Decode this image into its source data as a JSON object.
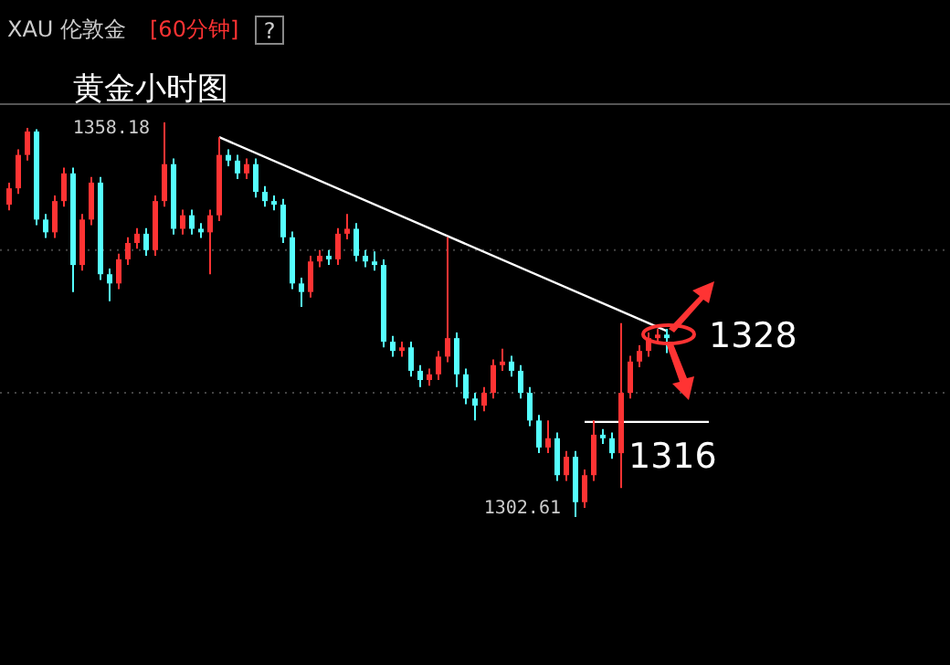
{
  "chart_data": {
    "type": "candlestick",
    "title": "XAU 伦敦金",
    "subtitle": "[60分钟]",
    "annotations": [
      "黄金小时图",
      "1358.18",
      "1302.61",
      "1328",
      "?"
    ],
    "categories": [
      null,
      null,
      null,
      null,
      null,
      null,
      null,
      null,
      null,
      null,
      null,
      null,
      null,
      null,
      null,
      null,
      null,
      null,
      null,
      null,
      null,
      null,
      null,
      null,
      null,
      null,
      null,
      null,
      null,
      null,
      null,
      null,
      null,
      null,
      null,
      null,
      null,
      null,
      null,
      null,
      null,
      null,
      null,
      null,
      null,
      null,
      null,
      null,
      null,
      null,
      null,
      null,
      null,
      null,
      null,
      null,
      null,
      null,
      null,
      null,
      null,
      null,
      null,
      null,
      null,
      null,
      null,
      null,
      null,
      null,
      null,
      null,
      null
    ],
    "ohlc": [
      [
        1346.6,
        1349.7,
        1345.8,
        1348.9
      ],
      [
        1348.9,
        1354.4,
        1348.1,
        1353.6
      ],
      [
        1353.6,
        1357.4,
        1352.8,
        1356.9
      ],
      [
        1356.9,
        1357.2,
        1343.7,
        1344.5
      ],
      [
        1344.5,
        1345.3,
        1341.9,
        1342.7
      ],
      [
        1342.7,
        1347.9,
        1341.9,
        1347.1
      ],
      [
        1347.1,
        1351.8,
        1346.3,
        1351.0
      ],
      [
        1351.0,
        1351.8,
        1334.3,
        1338.1
      ],
      [
        1338.1,
        1345.3,
        1337.3,
        1344.5
      ],
      [
        1344.5,
        1350.5,
        1343.7,
        1349.7
      ],
      [
        1349.7,
        1350.5,
        1336.0,
        1336.8
      ],
      [
        1336.8,
        1337.6,
        1333.0,
        1335.5
      ],
      [
        1335.5,
        1339.7,
        1334.7,
        1338.9
      ],
      [
        1338.9,
        1342.0,
        1338.1,
        1341.2
      ],
      [
        1341.2,
        1343.3,
        1340.4,
        1342.5
      ],
      [
        1342.5,
        1343.3,
        1339.4,
        1340.2
      ],
      [
        1340.2,
        1347.9,
        1339.4,
        1347.1
      ],
      [
        1347.1,
        1358.18,
        1346.3,
        1352.3
      ],
      [
        1352.3,
        1353.1,
        1342.4,
        1343.2
      ],
      [
        1343.2,
        1345.9,
        1342.4,
        1345.1
      ],
      [
        1345.1,
        1345.9,
        1342.4,
        1343.2
      ],
      [
        1343.2,
        1344.0,
        1341.9,
        1342.7
      ],
      [
        1342.7,
        1345.9,
        1336.8,
        1345.1
      ],
      [
        1345.1,
        1356.1,
        1344.3,
        1353.6
      ],
      [
        1353.6,
        1354.4,
        1352.0,
        1352.8
      ],
      [
        1352.8,
        1353.6,
        1350.2,
        1351.0
      ],
      [
        1351.0,
        1353.1,
        1350.2,
        1352.3
      ],
      [
        1352.3,
        1353.1,
        1347.6,
        1348.4
      ],
      [
        1348.4,
        1349.2,
        1346.3,
        1347.1
      ],
      [
        1347.1,
        1347.9,
        1345.8,
        1346.6
      ],
      [
        1346.6,
        1347.4,
        1341.2,
        1342.0
      ],
      [
        1342.0,
        1342.8,
        1334.7,
        1335.5
      ],
      [
        1335.5,
        1336.3,
        1332.2,
        1334.3
      ],
      [
        1334.3,
        1339.4,
        1333.5,
        1338.6
      ],
      [
        1338.6,
        1340.2,
        1337.8,
        1339.4
      ],
      [
        1339.4,
        1340.2,
        1338.1,
        1338.9
      ],
      [
        1338.9,
        1343.3,
        1338.1,
        1342.5
      ],
      [
        1342.5,
        1345.3,
        1341.7,
        1343.2
      ],
      [
        1343.2,
        1344.0,
        1338.6,
        1339.4
      ],
      [
        1339.4,
        1340.2,
        1337.8,
        1338.6
      ],
      [
        1338.6,
        1340.0,
        1337.3,
        1338.1
      ],
      [
        1338.1,
        1338.9,
        1326.5,
        1327.3
      ],
      [
        1327.3,
        1328.1,
        1325.2,
        1326.0
      ],
      [
        1326.0,
        1327.3,
        1325.2,
        1326.5
      ],
      [
        1326.5,
        1327.3,
        1322.4,
        1323.2
      ],
      [
        1323.2,
        1324.0,
        1320.9,
        1321.9
      ],
      [
        1321.9,
        1323.5,
        1321.1,
        1322.7
      ],
      [
        1322.7,
        1326.0,
        1321.9,
        1325.2
      ],
      [
        1325.2,
        1342.0,
        1324.4,
        1327.8
      ],
      [
        1327.8,
        1328.6,
        1320.9,
        1322.7
      ],
      [
        1322.7,
        1323.5,
        1318.5,
        1319.3
      ],
      [
        1319.3,
        1320.1,
        1316.2,
        1318.3
      ],
      [
        1318.3,
        1320.9,
        1317.5,
        1320.1
      ],
      [
        1320.1,
        1324.8,
        1319.3,
        1324.0
      ],
      [
        1324.0,
        1326.3,
        1323.2,
        1324.5
      ],
      [
        1324.5,
        1325.3,
        1322.4,
        1323.2
      ],
      [
        1323.2,
        1324.0,
        1319.3,
        1320.1
      ],
      [
        1320.1,
        1320.9,
        1315.4,
        1316.2
      ],
      [
        1316.2,
        1317.0,
        1311.6,
        1312.4
      ],
      [
        1312.4,
        1316.2,
        1311.6,
        1313.7
      ],
      [
        1313.7,
        1314.5,
        1307.7,
        1308.5
      ],
      [
        1308.5,
        1311.9,
        1307.7,
        1311.1
      ],
      [
        1311.1,
        1311.9,
        1302.61,
        1304.7
      ],
      [
        1304.7,
        1309.3,
        1303.9,
        1308.5
      ],
      [
        1308.5,
        1316.2,
        1307.7,
        1314.2
      ],
      [
        1314.2,
        1315.0,
        1312.9,
        1313.7
      ],
      [
        1313.7,
        1314.5,
        1310.8,
        1311.6
      ],
      [
        1311.6,
        1329.9,
        1306.7,
        1320.1
      ],
      [
        1320.1,
        1325.3,
        1319.3,
        1324.5
      ],
      [
        1324.5,
        1326.8,
        1323.7,
        1326.0
      ],
      [
        1326.0,
        1328.6,
        1325.2,
        1327.8
      ],
      [
        1327.8,
        1329.1,
        1327.0,
        1328.3
      ],
      [
        1328.3,
        1329.1,
        1325.7,
        1327.8
      ]
    ],
    "colors": [
      "#ff3333",
      "#ff3333",
      "#ff3333",
      "#55ffff",
      "#55ffff",
      "#ff3333",
      "#ff3333",
      "#55ffff",
      "#ff3333",
      "#ff3333",
      "#55ffff",
      "#55ffff",
      "#ff3333",
      "#ff3333",
      "#ff3333",
      "#55ffff",
      "#ff3333",
      "#ff3333",
      "#55ffff",
      "#ff3333",
      "#55ffff",
      "#55ffff",
      "#ff3333",
      "#ff3333",
      "#55ffff",
      "#55ffff",
      "#ff3333",
      "#55ffff",
      "#55ffff",
      "#55ffff",
      "#55ffff",
      "#55ffff",
      "#55ffff",
      "#ff3333",
      "#ff3333",
      "#55ffff",
      "#ff3333",
      "#ff3333",
      "#55ffff",
      "#55ffff",
      "#55ffff",
      "#55ffff",
      "#55ffff",
      "#ff3333",
      "#55ffff",
      "#55ffff",
      "#ff3333",
      "#ff3333",
      "#ff3333",
      "#55ffff",
      "#55ffff",
      "#55ffff",
      "#ff3333",
      "#ff3333",
      "#ff3333",
      "#55ffff",
      "#55ffff",
      "#55ffff",
      "#55ffff",
      "#ff3333",
      "#55ffff",
      "#ff3333",
      "#55ffff",
      "#ff3333",
      "#ff3333",
      "#55ffff",
      "#55ffff",
      "#ff3333",
      "#ff3333",
      "#ff3333",
      "#ff3333",
      "#ff3333",
      "#55ffff"
    ],
    "series": [
      {
        "type": "line",
        "color": "#ffffff",
        "values": [
          null,
          null,
          null,
          null,
          null,
          null,
          null,
          null,
          null,
          null,
          null,
          null,
          null,
          null,
          null,
          null,
          null,
          null,
          null,
          null,
          null,
          null,
          null,
          1356.1,
          null,
          null,
          null,
          null,
          null,
          null,
          null,
          null,
          null,
          null,
          null,
          null,
          null,
          null,
          null,
          null,
          null,
          null,
          null,
          null,
          null,
          null,
          null,
          null,
          null,
          null,
          null,
          null,
          null,
          null,
          null,
          null,
          null,
          null,
          null,
          null,
          null,
          null,
          null,
          null,
          null,
          null,
          null,
          null,
          null,
          null,
          null,
          null,
          1328.8
        ]
      }
    ],
    "ref_lines": [
      {
        "axis": "y",
        "value": 1316,
        "label": "1316",
        "color": "#ffffff"
      }
    ],
    "yticks": [
      {
        "value": 1340.2,
        "label": null
      },
      {
        "value": 1320.1,
        "label": null
      }
    ],
    "grid": "y"
  }
}
